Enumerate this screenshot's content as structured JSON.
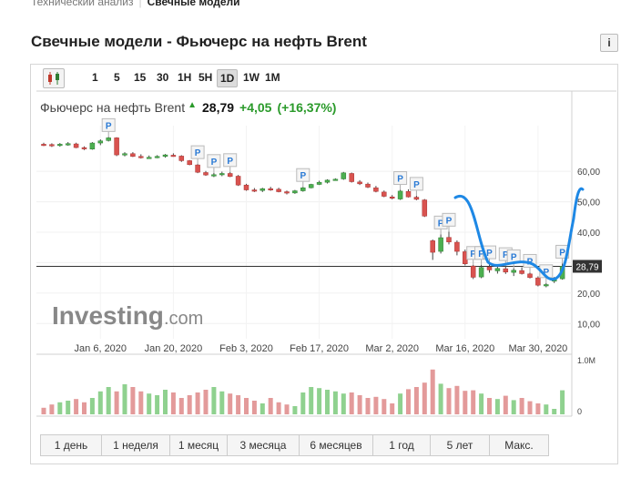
{
  "breadcrumb": {
    "parent": "Технический анализ",
    "current": "Свечные модели"
  },
  "page": {
    "title": "Свечные модели - Фьючерс на нефть Brent",
    "info_label": "i"
  },
  "toolbar": {
    "timeframes": [
      "1",
      "5",
      "15",
      "30",
      "1H",
      "5H",
      "1D",
      "1W",
      "1M"
    ],
    "active": "1D"
  },
  "quote": {
    "name": "Фьючерс на нефть Brent",
    "price": "28,79",
    "change": "+4,05",
    "change_pct": "(+16,37%)"
  },
  "brand": {
    "logo_bold": "Investing",
    "logo_light": ".com"
  },
  "periods": [
    "1 день",
    "1 неделя",
    "1 месяц",
    "3 месяца",
    "6 месяцев",
    "1 год",
    "5 лет",
    "Макс."
  ],
  "colors": {
    "up": "#4caf50",
    "down": "#d9534f",
    "annotation": "#2196f3",
    "price_tag": "#333333"
  },
  "chart_data": {
    "type": "candlestick",
    "x_tick_labels": [
      "Jan 6, 2020",
      "Jan 20, 2020",
      "Feb 3, 2020",
      "Feb 17, 2020",
      "Mar 2, 2020",
      "Mar 16, 2020",
      "Mar 30, 2020"
    ],
    "y_tick_labels": [
      "60,00",
      "50,00",
      "40,00",
      "30,00",
      "20,00",
      "10,00"
    ],
    "ylim": [
      5,
      75
    ],
    "last_price_label": "28,79",
    "last_price": 28.79,
    "pattern_marker": "P",
    "volume_tick_labels": [
      "1.0M",
      "0"
    ],
    "ohlc": [
      [
        68.9,
        69.4,
        68.3,
        68.8
      ],
      [
        68.8,
        69.2,
        68.0,
        68.5
      ],
      [
        68.5,
        69.3,
        68.1,
        68.9
      ],
      [
        68.9,
        69.6,
        68.4,
        69.1
      ],
      [
        69.0,
        69.4,
        67.6,
        67.8
      ],
      [
        67.8,
        68.2,
        67.0,
        67.4
      ],
      [
        67.3,
        69.6,
        67.1,
        69.3
      ],
      [
        69.3,
        70.5,
        68.6,
        70.0
      ],
      [
        70.1,
        71.3,
        69.8,
        71.0
      ],
      [
        71.0,
        71.2,
        65.0,
        65.4
      ],
      [
        65.4,
        66.3,
        64.9,
        65.8
      ],
      [
        65.8,
        66.3,
        64.7,
        64.9
      ],
      [
        64.9,
        65.6,
        64.2,
        64.5
      ],
      [
        64.5,
        65.2,
        64.1,
        64.6
      ],
      [
        64.7,
        65.3,
        64.3,
        64.9
      ],
      [
        64.9,
        65.7,
        64.5,
        65.4
      ],
      [
        65.3,
        65.9,
        64.8,
        65.0
      ],
      [
        65.0,
        65.3,
        63.1,
        63.5
      ],
      [
        63.5,
        63.7,
        62.0,
        62.2
      ],
      [
        62.1,
        62.4,
        59.4,
        59.7
      ],
      [
        59.6,
        60.1,
        58.5,
        58.8
      ],
      [
        58.8,
        59.5,
        58.1,
        58.9
      ],
      [
        58.9,
        59.9,
        58.4,
        59.3
      ],
      [
        59.3,
        59.8,
        58.1,
        58.3
      ],
      [
        58.4,
        58.8,
        55.2,
        55.5
      ],
      [
        55.5,
        55.9,
        53.6,
        53.9
      ],
      [
        53.9,
        54.5,
        53.2,
        53.7
      ],
      [
        53.7,
        54.6,
        53.2,
        54.3
      ],
      [
        54.3,
        54.9,
        53.6,
        54.1
      ],
      [
        54.1,
        54.6,
        53.1,
        53.3
      ],
      [
        53.3,
        53.7,
        52.4,
        52.9
      ],
      [
        52.9,
        53.9,
        52.6,
        53.6
      ],
      [
        53.6,
        54.9,
        53.3,
        54.6
      ],
      [
        54.6,
        55.9,
        54.4,
        55.7
      ],
      [
        55.7,
        56.9,
        55.5,
        56.4
      ],
      [
        56.4,
        57.4,
        56.0,
        57.1
      ],
      [
        57.2,
        57.7,
        56.9,
        57.4
      ],
      [
        57.5,
        59.8,
        57.2,
        59.5
      ],
      [
        59.3,
        59.6,
        56.3,
        56.6
      ],
      [
        56.5,
        57.1,
        55.5,
        55.9
      ],
      [
        55.8,
        56.3,
        54.5,
        54.8
      ],
      [
        54.6,
        55.2,
        53.1,
        53.4
      ],
      [
        53.2,
        53.7,
        51.5,
        51.8
      ],
      [
        51.6,
        52.2,
        50.8,
        51.3
      ],
      [
        50.9,
        53.9,
        50.6,
        53.5
      ],
      [
        53.4,
        54.1,
        51.4,
        51.6
      ],
      [
        51.5,
        52.0,
        50.5,
        50.8
      ],
      [
        50.6,
        50.9,
        45.0,
        45.3
      ],
      [
        37.2,
        37.6,
        30.9,
        33.4
      ],
      [
        33.7,
        39.3,
        33.0,
        38.2
      ],
      [
        38.3,
        40.2,
        36.0,
        36.8
      ],
      [
        36.7,
        37.3,
        32.4,
        33.7
      ],
      [
        33.6,
        34.3,
        29.1,
        29.6
      ],
      [
        28.9,
        29.3,
        24.6,
        25.2
      ],
      [
        25.3,
        29.3,
        24.9,
        28.4
      ],
      [
        28.6,
        29.5,
        26.7,
        27.6
      ],
      [
        27.3,
        28.9,
        26.4,
        28.1
      ],
      [
        28.0,
        28.9,
        26.3,
        26.9
      ],
      [
        26.8,
        28.2,
        25.6,
        27.5
      ],
      [
        27.4,
        28.5,
        26.1,
        26.4
      ],
      [
        26.3,
        26.7,
        24.8,
        25.1
      ],
      [
        25.0,
        25.5,
        22.2,
        22.6
      ],
      [
        22.6,
        23.3,
        21.9,
        22.8
      ],
      [
        23.9,
        25.3,
        23.3,
        24.7
      ],
      [
        24.7,
        29.7,
        24.4,
        28.79
      ]
    ],
    "volumes": [
      0.12,
      0.18,
      0.22,
      0.25,
      0.28,
      0.22,
      0.3,
      0.42,
      0.5,
      0.42,
      0.55,
      0.5,
      0.42,
      0.38,
      0.35,
      0.45,
      0.4,
      0.3,
      0.35,
      0.4,
      0.45,
      0.5,
      0.42,
      0.38,
      0.35,
      0.3,
      0.25,
      0.2,
      0.3,
      0.22,
      0.18,
      0.15,
      0.4,
      0.5,
      0.48,
      0.45,
      0.42,
      0.38,
      0.4,
      0.35,
      0.3,
      0.32,
      0.28,
      0.2,
      0.38,
      0.46,
      0.5,
      0.58,
      0.82,
      0.56,
      0.48,
      0.52,
      0.43,
      0.44,
      0.38,
      0.3,
      0.28,
      0.34,
      0.26,
      0.3,
      0.24,
      0.2,
      0.18,
      0.1,
      0.44
    ],
    "pattern_marker_indices": [
      8,
      19,
      21,
      23,
      32,
      44,
      46,
      49,
      50,
      53,
      54,
      55,
      57,
      58,
      60,
      62,
      64
    ]
  }
}
